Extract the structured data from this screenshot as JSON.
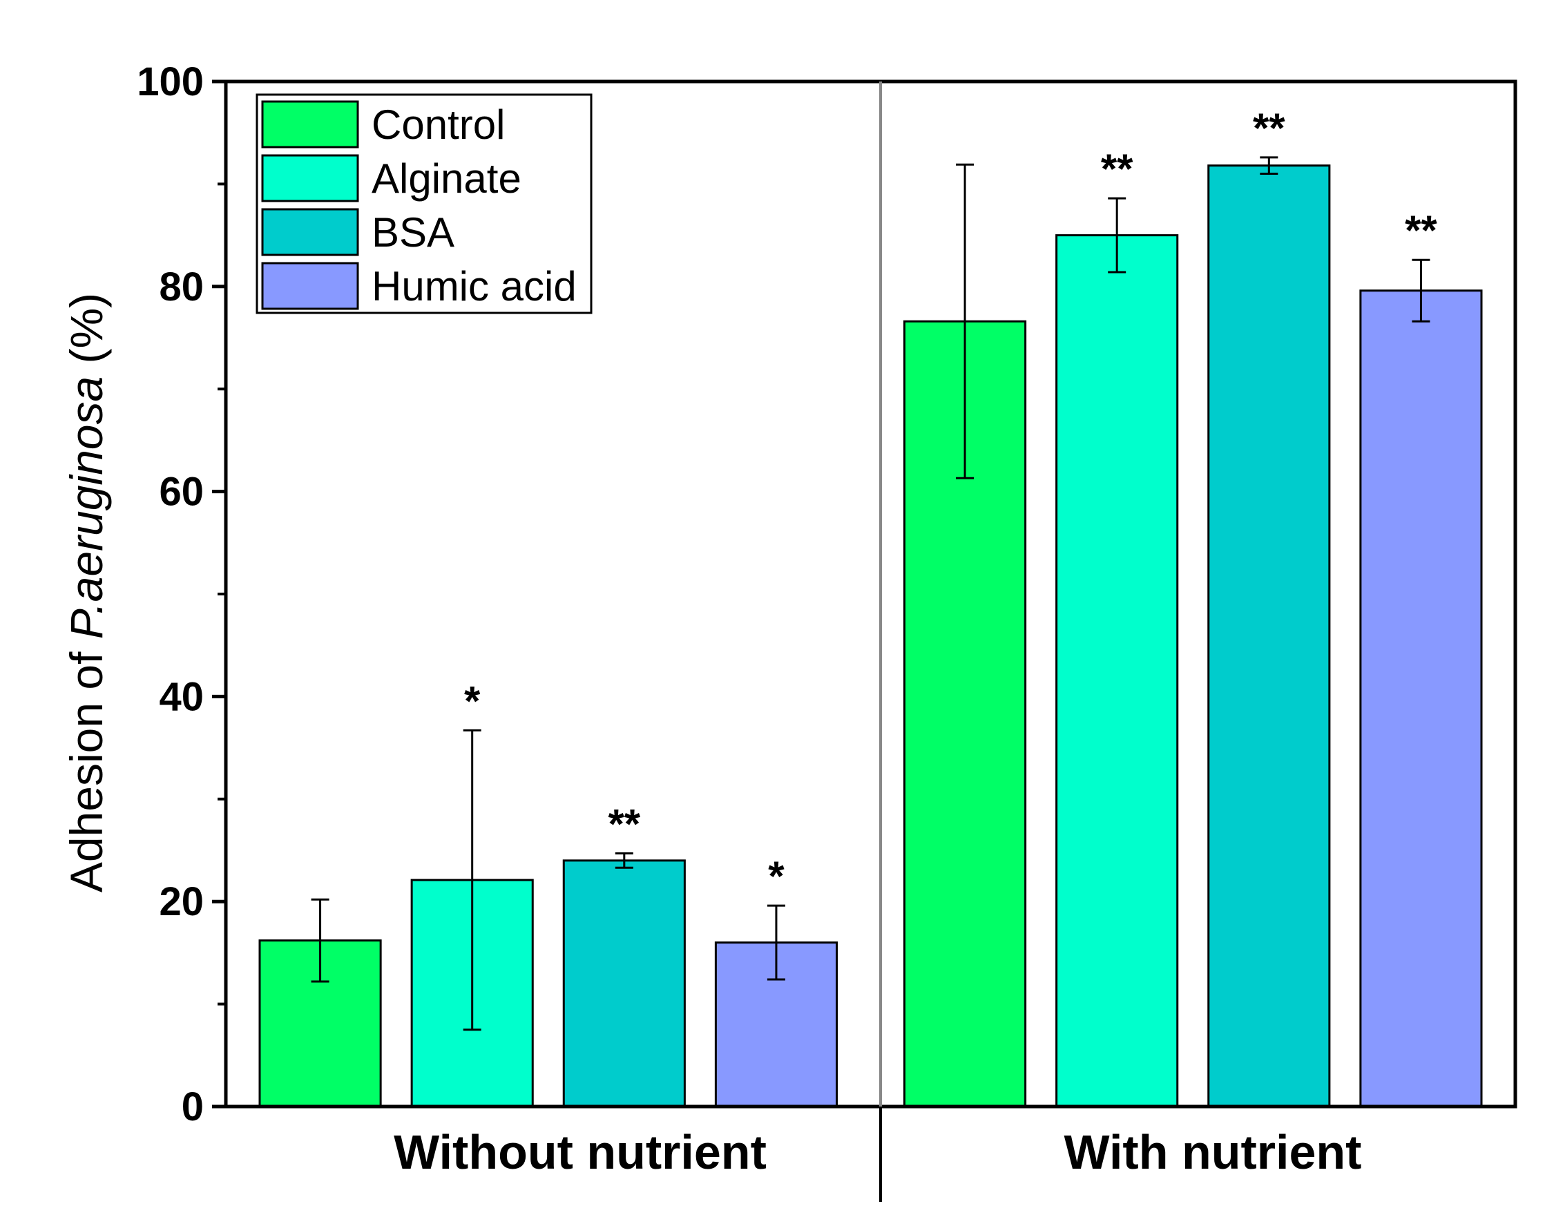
{
  "chart_data": {
    "type": "bar",
    "groups": [
      "Without nutrient",
      "With nutrient"
    ],
    "ylabel_parts": [
      "Adhesion of ",
      "P.aeruginosa",
      " (%)"
    ],
    "ylim": [
      0,
      100
    ],
    "yticks": [
      0,
      20,
      40,
      60,
      80,
      100
    ],
    "grid": false,
    "legend_position": "top-left",
    "series": [
      {
        "name": "Control",
        "color": "#00ff66",
        "values": [
          16.2,
          76.6
        ],
        "errors": [
          4.0,
          15.3
        ],
        "sig": [
          "",
          ""
        ]
      },
      {
        "name": "Alginate",
        "color": "#00ffcc",
        "values": [
          22.1,
          85.0
        ],
        "errors": [
          14.6,
          3.6
        ],
        "sig": [
          "*",
          "**"
        ]
      },
      {
        "name": "BSA",
        "color": "#00cccc",
        "values": [
          24.0,
          91.8
        ],
        "errors": [
          0.7,
          0.8
        ],
        "sig": [
          "**",
          "**"
        ]
      },
      {
        "name": "Humic acid",
        "color": "#8899ff",
        "values": [
          16.0,
          79.6
        ],
        "errors": [
          3.6,
          3.0
        ],
        "sig": [
          "*",
          "**"
        ]
      }
    ]
  }
}
